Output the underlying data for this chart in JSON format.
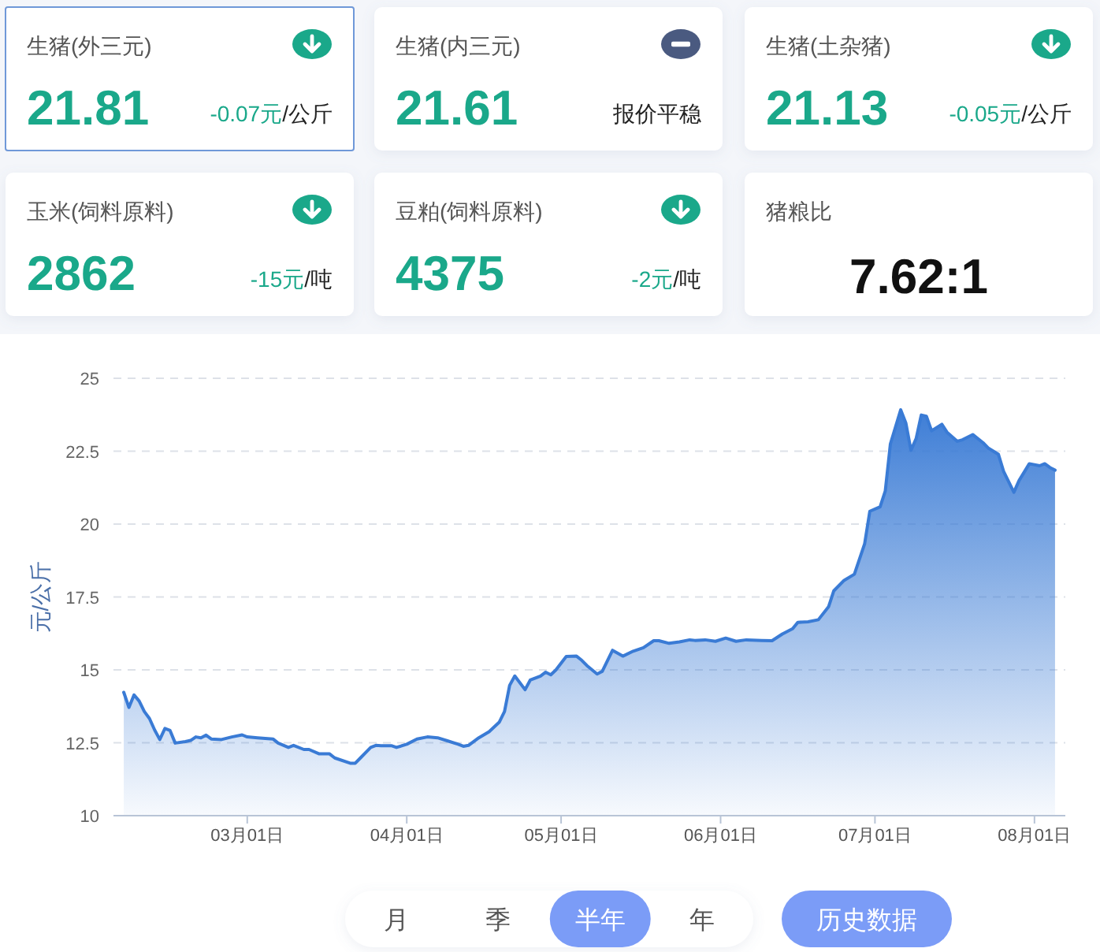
{
  "chart_data": [
    {
      "type": "other",
      "title": "生猪(外三元)",
      "annotations": [
        "21.81",
        "-0.07元",
        "/公斤"
      ],
      "colors": [
        "#1aa88a",
        "#1aa88a",
        "#222222",
        "#1aa88a"
      ],
      "color": "#6f98d8"
    },
    {
      "type": "other",
      "title": "生猪(内三元)",
      "annotations": [
        "21.61",
        "报价平稳"
      ],
      "colors": [
        "#1aa88a",
        "#222222",
        "#4a5a80"
      ]
    },
    {
      "type": "other",
      "title": "生猪(土杂猪)",
      "annotations": [
        "21.13",
        "-0.05元",
        "/公斤"
      ],
      "colors": [
        "#1aa88a",
        "#1aa88a",
        "#222222",
        "#1aa88a"
      ]
    },
    {
      "type": "other",
      "title": "玉米(饲料原料)",
      "annotations": [
        "2862",
        "-15元",
        "/吨"
      ],
      "colors": [
        "#1aa88a",
        "#1aa88a",
        "#222222",
        "#1aa88a"
      ]
    },
    {
      "type": "other",
      "title": "豆粕(饲料原料)",
      "annotations": [
        "4375",
        "-2元",
        "/吨"
      ],
      "colors": [
        "#1aa88a",
        "#1aa88a",
        "#222222",
        "#1aa88a"
      ]
    },
    {
      "type": "other",
      "title": "猪粮比",
      "annotations": [
        "7.62:1"
      ],
      "colors": [
        "#111111"
      ]
    },
    {
      "type": "area",
      "ylabel": "元/公斤",
      "color": "#3a7bd5",
      "grid": "y",
      "ylim": [
        10,
        25
      ],
      "yticks": [
        10,
        12.5,
        15,
        17.5,
        20,
        22.5,
        25
      ],
      "xlim": [
        "--02-03",
        "--08-07"
      ],
      "xticks": [
        {
          "value": "--03-01",
          "label": "03月01日"
        },
        {
          "value": "--04-01",
          "label": "04月01日"
        },
        {
          "value": "--05-01",
          "label": "05月01日"
        },
        {
          "value": "--06-01",
          "label": "06月01日"
        },
        {
          "value": "--07-01",
          "label": "07月01日"
        },
        {
          "value": "--08-01",
          "label": "08月01日"
        }
      ],
      "x": [
        "--02-05",
        "--02-06",
        "--02-07",
        "--02-08",
        "--02-09",
        "--02-10",
        "--02-11",
        "--02-12",
        "--02-13",
        "--02-14",
        "--02-15",
        "--02-17",
        "--02-18",
        "--02-19",
        "--02-20",
        "--02-21",
        "--02-22",
        "--02-24",
        "--02-26",
        "--02-28",
        "--03-01",
        "--03-03",
        "--03-06",
        "--03-07",
        "--03-09",
        "--03-10",
        "--03-12",
        "--03-13",
        "--03-15",
        "--03-17",
        "--03-18",
        "--03-21",
        "--03-22",
        "--03-23",
        "--03-25",
        "--03-26",
        "--03-27",
        "--03-29",
        "--03-30",
        "--04-01",
        "--04-03",
        "--04-05",
        "--04-07",
        "--04-09",
        "--04-11",
        "--04-12",
        "--04-13",
        "--04-15",
        "--04-17",
        "--04-19",
        "--04-20",
        "--04-21",
        "--04-22",
        "--04-24",
        "--04-25",
        "--04-27",
        "--04-28",
        "--04-29",
        "--04-30",
        "--05-02",
        "--05-04",
        "--05-05",
        "--05-06",
        "--05-08",
        "--05-09",
        "--05-11",
        "--05-13",
        "--05-15",
        "--05-17",
        "--05-19",
        "--05-20",
        "--05-22",
        "--05-24",
        "--05-26",
        "--05-27",
        "--05-29",
        "--05-31",
        "--06-02",
        "--06-04",
        "--06-06",
        "--06-09",
        "--06-11",
        "--06-13",
        "--06-15",
        "--06-16",
        "--06-18",
        "--06-20",
        "--06-22",
        "--06-23",
        "--06-25",
        "--06-27",
        "--06-29",
        "--06-30",
        "--07-02",
        "--07-03",
        "--07-04",
        "--07-06",
        "--07-07",
        "--07-08",
        "--07-09",
        "--07-10",
        "--07-11",
        "--07-12",
        "--07-14",
        "--07-15",
        "--07-17",
        "--07-18",
        "--07-20",
        "--07-22",
        "--07-23",
        "--07-25",
        "--07-26",
        "--07-28",
        "--07-29",
        "--07-31",
        "--08-02",
        "--08-03",
        "--08-04",
        "--08-05"
      ],
      "values": [
        14.23,
        13.71,
        14.14,
        13.93,
        13.57,
        13.33,
        12.94,
        12.61,
        12.99,
        12.92,
        12.49,
        12.54,
        12.58,
        12.7,
        12.67,
        12.76,
        12.63,
        12.61,
        12.7,
        12.77,
        12.7,
        12.67,
        12.63,
        12.49,
        12.34,
        12.41,
        12.27,
        12.27,
        12.12,
        12.12,
        11.98,
        11.8,
        11.8,
        11.98,
        12.34,
        12.41,
        12.4,
        12.4,
        12.34,
        12.45,
        12.63,
        12.7,
        12.67,
        12.56,
        12.45,
        12.38,
        12.41,
        12.67,
        12.88,
        13.21,
        13.57,
        14.47,
        14.79,
        14.32,
        14.65,
        14.79,
        14.92,
        14.83,
        15.0,
        15.46,
        15.47,
        15.33,
        15.15,
        14.86,
        14.95,
        15.67,
        15.47,
        15.64,
        15.76,
        16.0,
        16.0,
        15.91,
        15.96,
        16.03,
        16.01,
        16.03,
        15.98,
        16.09,
        15.98,
        16.03,
        16.01,
        16.0,
        16.23,
        16.41,
        16.63,
        16.65,
        16.72,
        17.17,
        17.71,
        18.07,
        18.28,
        19.33,
        20.44,
        20.59,
        21.13,
        22.75,
        23.92,
        23.47,
        22.53,
        22.93,
        23.74,
        23.7,
        23.2,
        23.42,
        23.15,
        22.84,
        22.89,
        23.07,
        22.79,
        22.61,
        22.39,
        21.81,
        21.09,
        21.49,
        22.07,
        22.0,
        22.07,
        21.94,
        21.85
      ]
    },
    {
      "type": "other",
      "categories": [
        "月",
        "季",
        "半年",
        "年"
      ],
      "colors": [
        null,
        null,
        "#7b9cf7",
        null
      ],
      "annotations": [
        "历史数据"
      ],
      "color": "#7b9cf7"
    }
  ]
}
